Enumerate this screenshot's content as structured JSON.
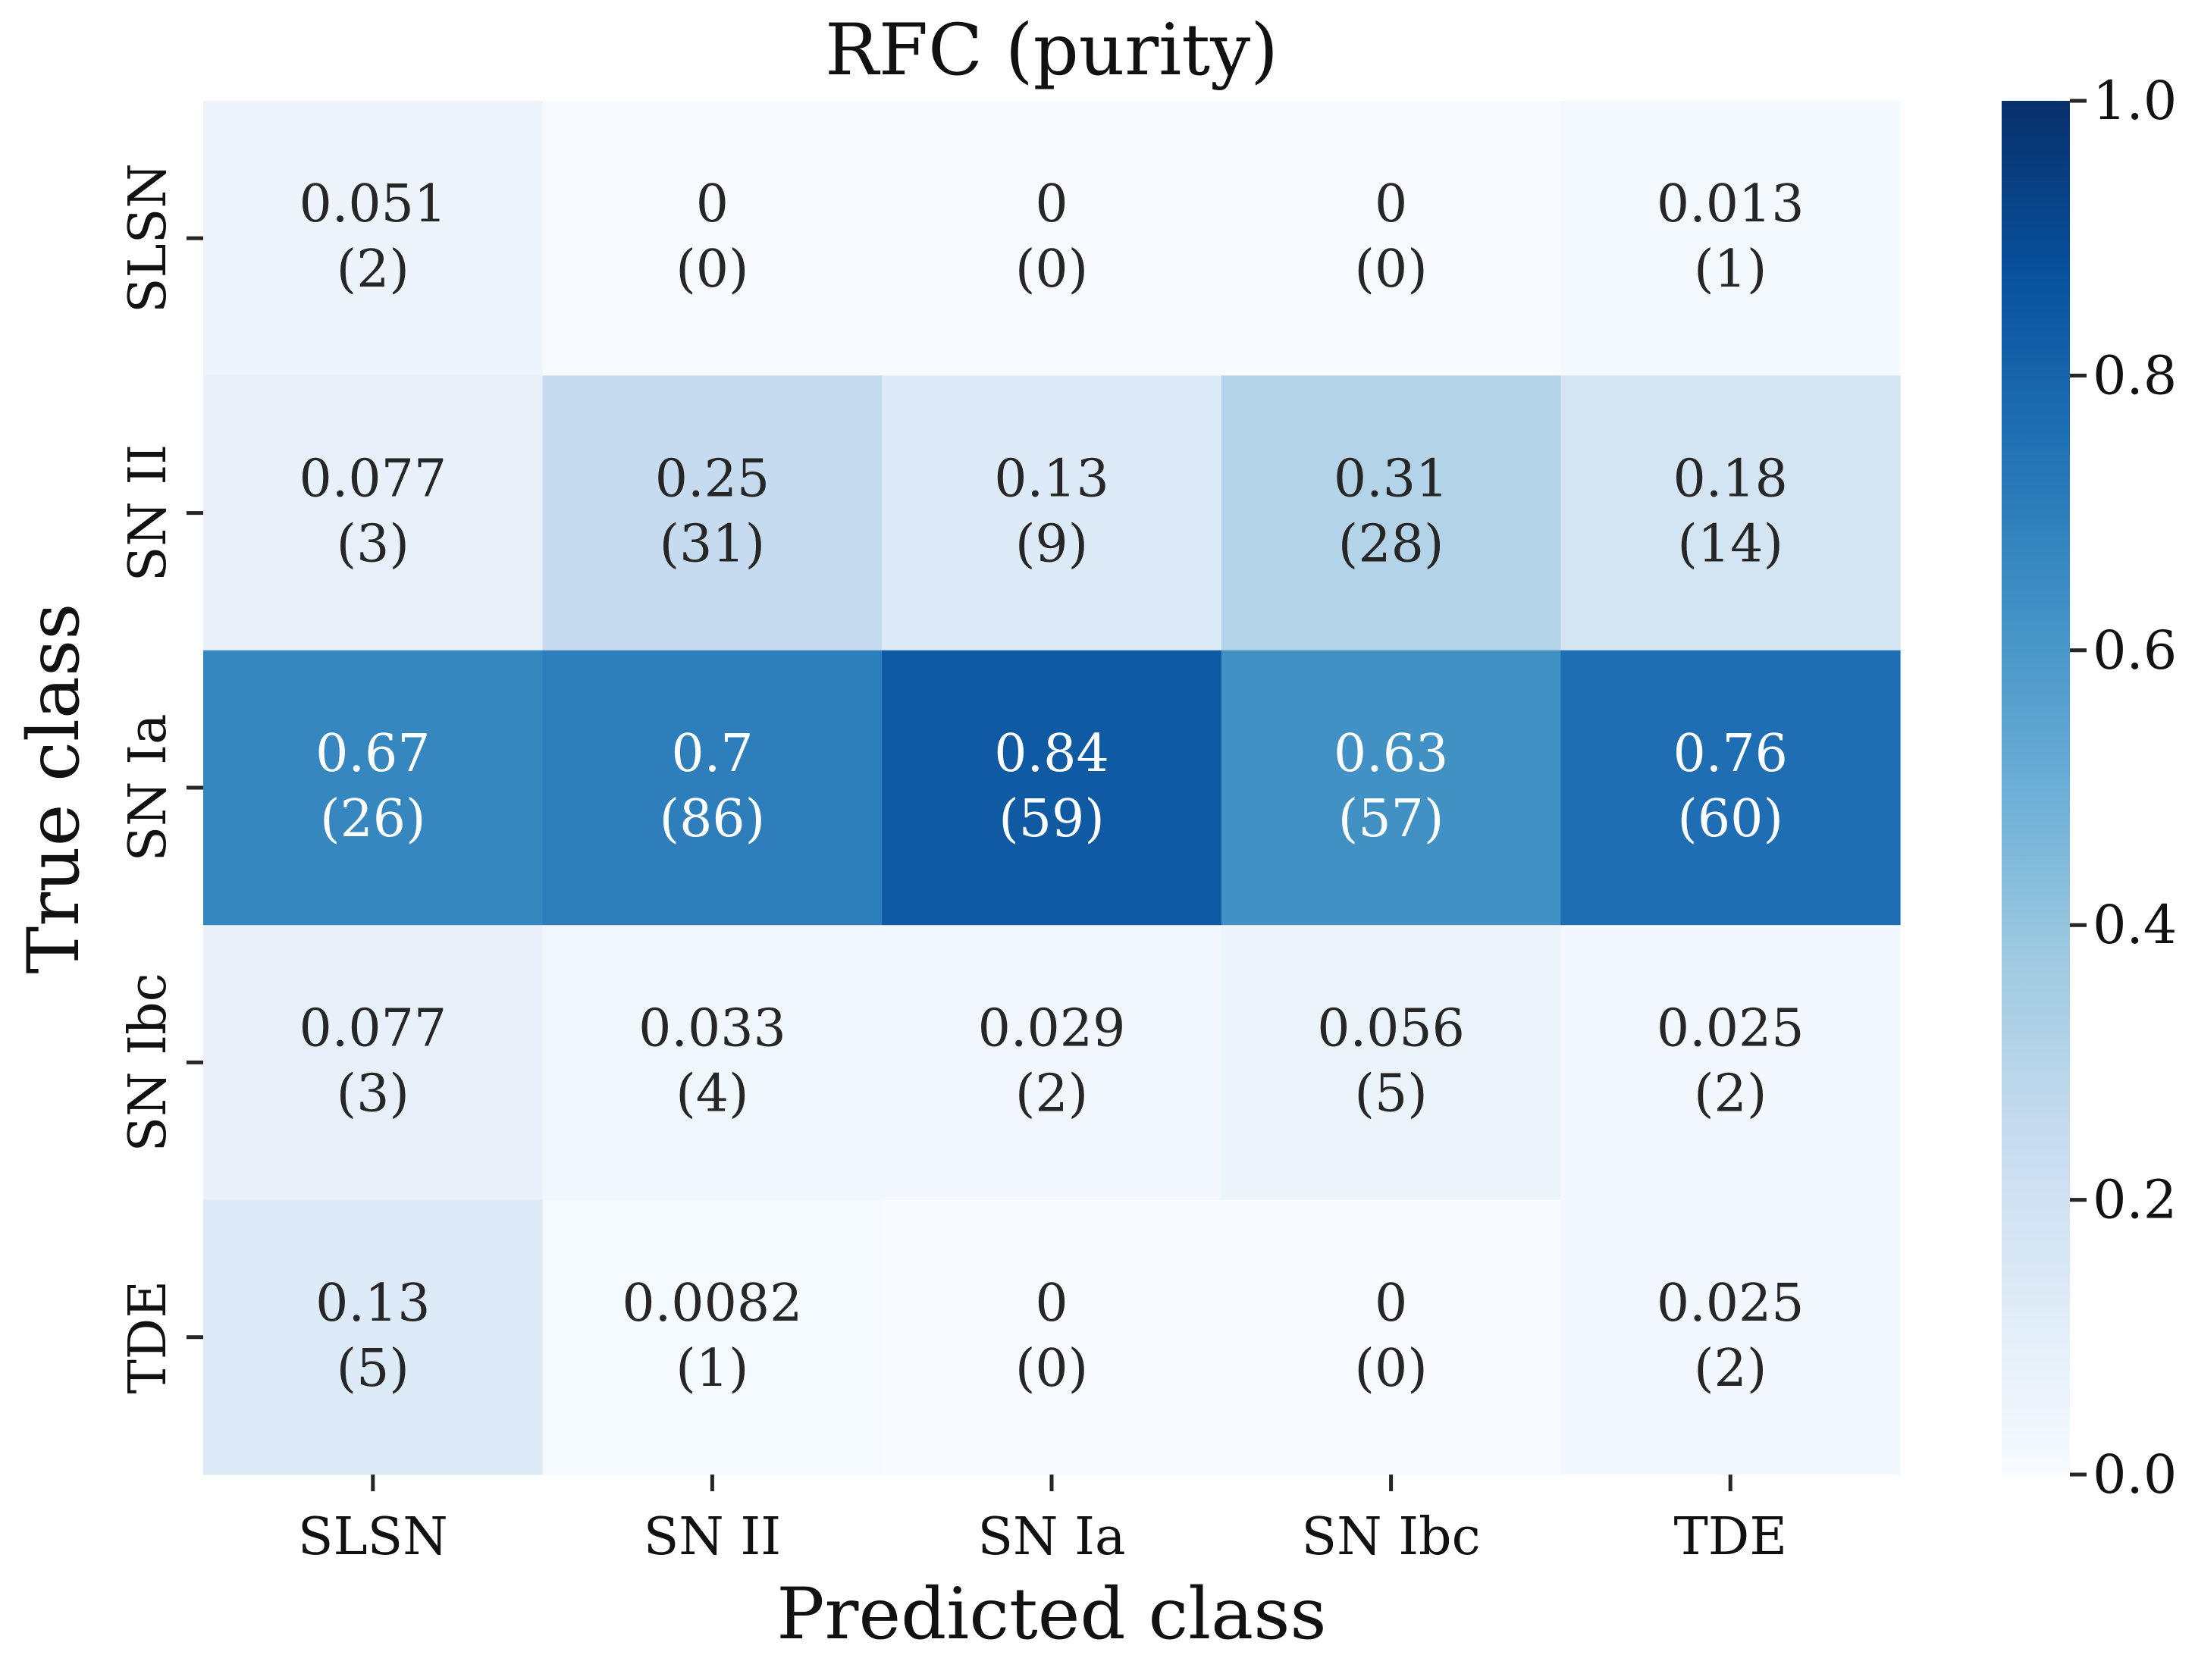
{
  "chart_data": {
    "type": "heatmap",
    "title": "RFC (purity)",
    "xlabel": "Predicted class",
    "ylabel": "True class",
    "x_categories": [
      "SLSN",
      "SN II",
      "SN Ia",
      "SN Ibc",
      "TDE"
    ],
    "y_categories": [
      "SLSN",
      "SN II",
      "SN Ia",
      "SN Ibc",
      "TDE"
    ],
    "values": [
      [
        0.051,
        0,
        0,
        0,
        0.013
      ],
      [
        0.077,
        0.25,
        0.13,
        0.31,
        0.18
      ],
      [
        0.67,
        0.7,
        0.84,
        0.63,
        0.76
      ],
      [
        0.077,
        0.033,
        0.029,
        0.056,
        0.025
      ],
      [
        0.13,
        0.0082,
        0,
        0,
        0.025
      ]
    ],
    "value_labels": [
      [
        "0.051",
        "0",
        "0",
        "0",
        "0.013"
      ],
      [
        "0.077",
        "0.25",
        "0.13",
        "0.31",
        "0.18"
      ],
      [
        "0.67",
        "0.7",
        "0.84",
        "0.63",
        "0.76"
      ],
      [
        "0.077",
        "0.033",
        "0.029",
        "0.056",
        "0.025"
      ],
      [
        "0.13",
        "0.0082",
        "0",
        "0",
        "0.025"
      ]
    ],
    "counts": [
      [
        "(2)",
        "(0)",
        "(0)",
        "(0)",
        "(1)"
      ],
      [
        "(3)",
        "(31)",
        "(9)",
        "(28)",
        "(14)"
      ],
      [
        "(26)",
        "(86)",
        "(59)",
        "(57)",
        "(60)"
      ],
      [
        "(3)",
        "(4)",
        "(2)",
        "(5)",
        "(2)"
      ],
      [
        "(5)",
        "(1)",
        "(0)",
        "(0)",
        "(2)"
      ]
    ],
    "colorbar": {
      "range": [
        0.0,
        1.0
      ],
      "ticks": [
        0.0,
        0.2,
        0.4,
        0.6,
        0.8,
        1.0
      ],
      "tick_labels": [
        "0.0",
        "0.2",
        "0.4",
        "0.6",
        "0.8",
        "1.0"
      ],
      "colormap": "Blues"
    },
    "grid": false
  }
}
